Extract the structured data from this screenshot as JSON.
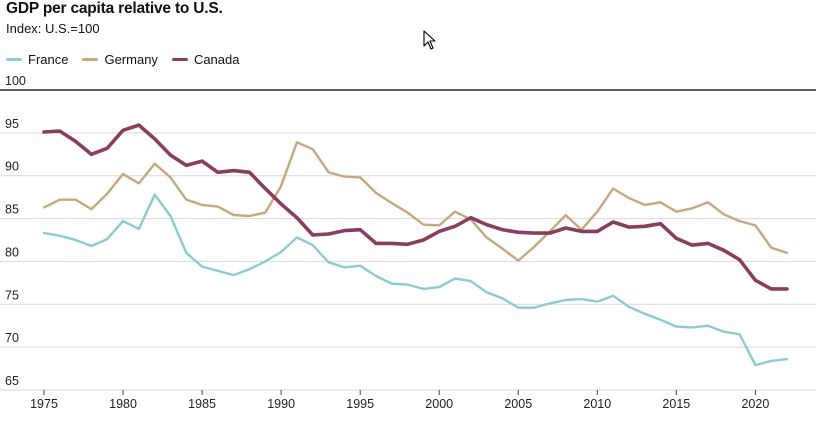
{
  "header": {
    "title": "GDP per capita relative to U.S.",
    "subtitle": "Index: U.S.=100"
  },
  "colors": {
    "france": "#8dcbd3",
    "germany": "#c8a77f",
    "canada": "#8a3e5e",
    "grid": "#d9d9d9",
    "baseline": "#000000"
  },
  "icons": {
    "cursor": "mouse-pointer-arrow"
  },
  "chart_data": {
    "type": "line",
    "title": "GDP per capita relative to U.S.",
    "subtitle": "Index: U.S.=100",
    "xlabel": "",
    "ylabel": "",
    "xlim": [
      1975,
      2022
    ],
    "ylim": [
      65,
      100
    ],
    "y_ticks": [
      65,
      70,
      75,
      80,
      85,
      90,
      95,
      100
    ],
    "y_tick_labels": [
      "65",
      "70",
      "75",
      "80",
      "85",
      "90",
      "95",
      "100"
    ],
    "x_ticks": [
      1975,
      1980,
      1985,
      1990,
      1995,
      2000,
      2005,
      2010,
      2015,
      2020
    ],
    "x_tick_labels": [
      "1975",
      "1980",
      "1985",
      "1990",
      "1995",
      "2000",
      "2005",
      "2010",
      "2015",
      "2020"
    ],
    "grid": "horizontal",
    "legend": "top-left",
    "x": [
      1975,
      1976,
      1977,
      1978,
      1979,
      1980,
      1981,
      1982,
      1983,
      1984,
      1985,
      1986,
      1987,
      1988,
      1989,
      1990,
      1991,
      1992,
      1993,
      1994,
      1995,
      1996,
      1997,
      1998,
      1999,
      2000,
      2001,
      2002,
      2003,
      2004,
      2005,
      2006,
      2007,
      2008,
      2009,
      2010,
      2011,
      2012,
      2013,
      2014,
      2015,
      2016,
      2017,
      2018,
      2019,
      2020,
      2021,
      2022
    ],
    "series": [
      {
        "name": "France",
        "key": "france",
        "values": [
          83.3,
          83.0,
          82.5,
          81.8,
          82.6,
          84.7,
          83.8,
          87.8,
          85.3,
          81.0,
          79.4,
          78.9,
          78.4,
          79.1,
          80.0,
          81.1,
          82.8,
          81.9,
          79.9,
          79.3,
          79.5,
          78.3,
          77.4,
          77.3,
          76.8,
          77.0,
          78.0,
          77.7,
          76.4,
          75.7,
          74.6,
          74.6,
          75.1,
          75.5,
          75.6,
          75.3,
          76.0,
          74.7,
          73.9,
          73.2,
          72.4,
          72.3,
          72.5,
          71.8,
          71.5,
          67.9,
          68.4,
          68.6
        ]
      },
      {
        "name": "Germany",
        "key": "germany",
        "values": [
          86.3,
          87.2,
          87.2,
          86.1,
          87.9,
          90.2,
          89.1,
          91.4,
          89.8,
          87.2,
          86.6,
          86.4,
          85.4,
          85.3,
          85.7,
          88.8,
          93.9,
          93.1,
          90.4,
          89.9,
          89.8,
          88.0,
          86.8,
          85.7,
          84.3,
          84.2,
          85.8,
          84.9,
          82.8,
          81.5,
          80.1,
          81.7,
          83.5,
          85.4,
          83.7,
          85.8,
          88.5,
          87.4,
          86.6,
          86.9,
          85.8,
          86.2,
          86.9,
          85.5,
          84.7,
          84.2,
          81.6,
          81.0
        ]
      },
      {
        "name": "Canada",
        "key": "canada",
        "values": [
          95.1,
          95.2,
          94.0,
          92.5,
          93.2,
          95.3,
          95.9,
          94.3,
          92.4,
          91.2,
          91.7,
          90.4,
          90.6,
          90.4,
          88.5,
          86.7,
          85.1,
          83.1,
          83.2,
          83.6,
          83.7,
          82.1,
          82.1,
          82.0,
          82.5,
          83.5,
          84.1,
          85.1,
          84.3,
          83.7,
          83.4,
          83.3,
          83.3,
          83.9,
          83.5,
          83.5,
          84.6,
          84.0,
          84.1,
          84.4,
          82.7,
          81.9,
          82.1,
          81.3,
          80.2,
          77.8,
          76.8,
          76.8
        ]
      }
    ]
  }
}
